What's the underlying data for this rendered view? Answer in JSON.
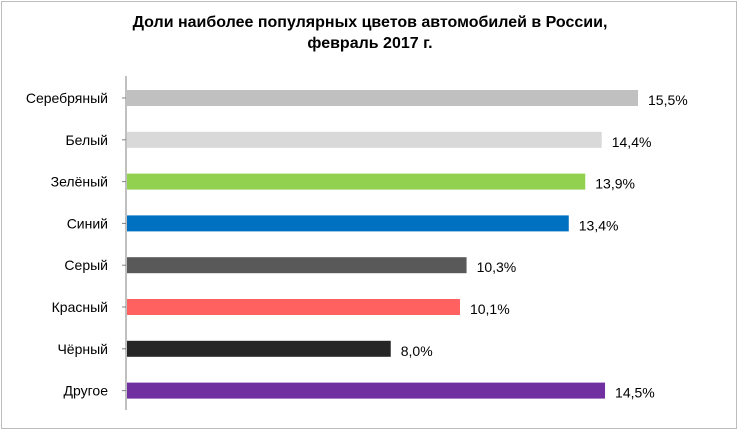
{
  "chart_data": {
    "type": "bar",
    "orientation": "horizontal",
    "title": [
      "Доли наиболее популярных цветов автомобилей в России,",
      "февраль 2017 г."
    ],
    "categories": [
      "Серебряный",
      "Белый",
      "Зелёный",
      "Синий",
      "Серый",
      "Красный",
      "Чёрный",
      "Другое"
    ],
    "values": [
      15.5,
      14.4,
      13.9,
      13.4,
      10.3,
      10.1,
      8.0,
      14.5
    ],
    "value_labels": [
      "15,5%",
      "14,4%",
      "13,9%",
      "13,4%",
      "10,3%",
      "10,1%",
      "8,0%",
      "14,5%"
    ],
    "colors": [
      "#c0c0c0",
      "#d9d9d9",
      "#92d050",
      "#0070c0",
      "#595959",
      "#ff6161",
      "#262626",
      "#7030a0"
    ],
    "xlim": [
      0,
      16
    ],
    "grid": false,
    "legend": "none"
  }
}
